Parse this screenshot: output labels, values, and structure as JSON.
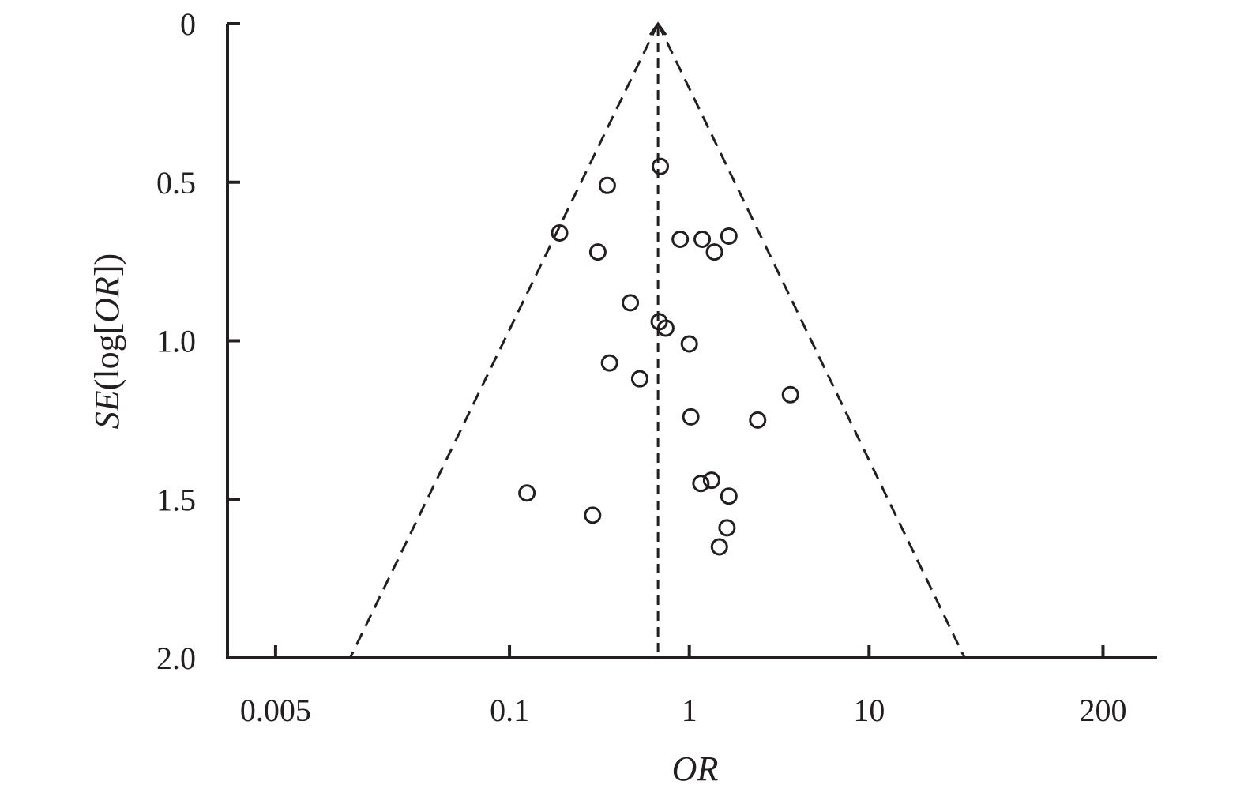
{
  "chart_data": {
    "type": "scatter",
    "title": "",
    "xlabel": "OR",
    "ylabel": {
      "italic": "SE",
      "rest": "(log[",
      "italic2": "OR",
      "close": "])"
    },
    "x_scale": "log",
    "y_inverted": true,
    "xlim": [
      0.0027,
      400
    ],
    "ylim": [
      0,
      2.0
    ],
    "x_ticks": [
      0.005,
      0.1,
      1,
      10,
      200
    ],
    "x_tick_labels": [
      "0.005",
      "0.1",
      "1",
      "10",
      "200"
    ],
    "y_ticks": [
      0,
      0.5,
      1.0,
      1.5,
      2.0
    ],
    "y_tick_labels": [
      "0",
      "0.5",
      "1.0",
      "1.5",
      "2.0"
    ],
    "pooled_or": 0.67,
    "funnel": {
      "apex_se": 0,
      "bottom_se": 2.0,
      "lower_or_at_bottom": 0.013,
      "upper_or_at_bottom": 34
    },
    "points": [
      {
        "x": 0.69,
        "y": 0.45
      },
      {
        "x": 0.35,
        "y": 0.51
      },
      {
        "x": 0.19,
        "y": 0.66
      },
      {
        "x": 0.31,
        "y": 0.72
      },
      {
        "x": 0.89,
        "y": 0.68
      },
      {
        "x": 1.18,
        "y": 0.68
      },
      {
        "x": 1.66,
        "y": 0.67
      },
      {
        "x": 1.38,
        "y": 0.72
      },
      {
        "x": 0.47,
        "y": 0.88
      },
      {
        "x": 0.68,
        "y": 0.94
      },
      {
        "x": 0.74,
        "y": 0.96
      },
      {
        "x": 1.0,
        "y": 1.01
      },
      {
        "x": 0.36,
        "y": 1.07
      },
      {
        "x": 0.53,
        "y": 1.12
      },
      {
        "x": 3.65,
        "y": 1.17
      },
      {
        "x": 1.02,
        "y": 1.24
      },
      {
        "x": 2.4,
        "y": 1.25
      },
      {
        "x": 1.33,
        "y": 1.44
      },
      {
        "x": 1.16,
        "y": 1.45
      },
      {
        "x": 0.125,
        "y": 1.48
      },
      {
        "x": 1.66,
        "y": 1.49
      },
      {
        "x": 0.29,
        "y": 1.55
      },
      {
        "x": 1.62,
        "y": 1.59
      },
      {
        "x": 1.47,
        "y": 1.65
      }
    ]
  }
}
